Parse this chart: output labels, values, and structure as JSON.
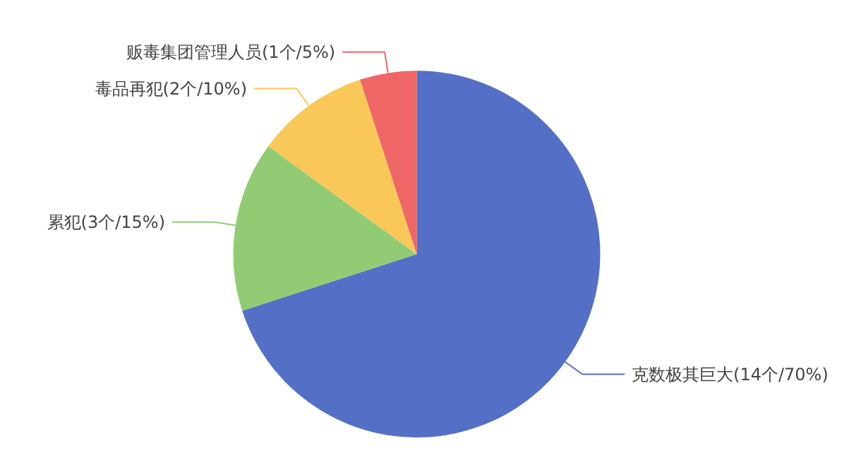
{
  "chart_data": {
    "type": "pie",
    "categories": [
      "克数极其巨大(14个/70%)",
      "累犯(3个/15%)",
      "毒品再犯(2个/10%)",
      "贩毒集团管理人员(1个/5%)"
    ],
    "values": [
      14,
      3,
      2,
      1
    ],
    "colors": [
      "#5470c6",
      "#91cc75",
      "#fac858",
      "#ee6666"
    ],
    "legend": false
  }
}
